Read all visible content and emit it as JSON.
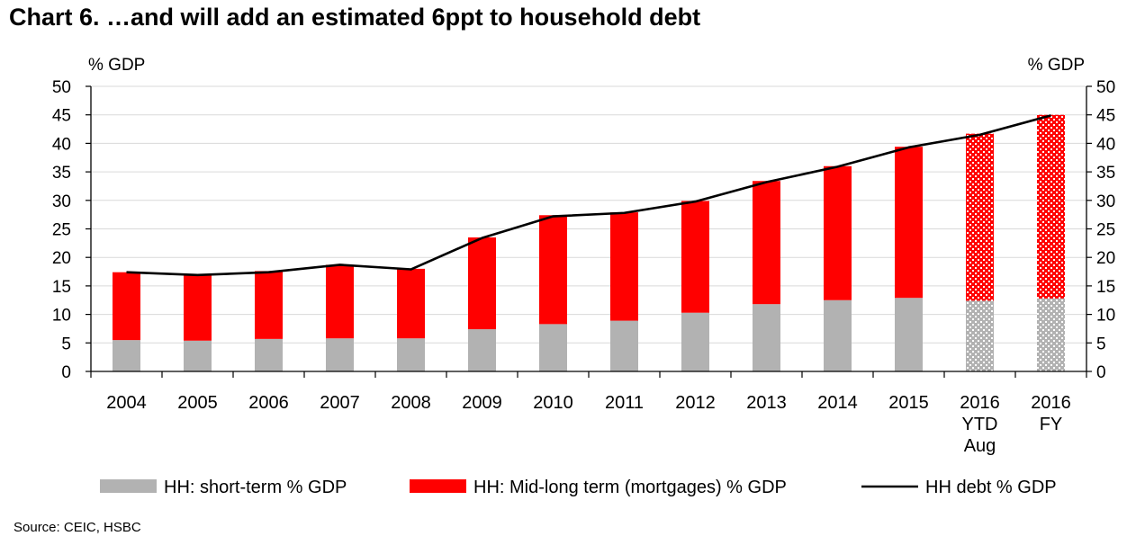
{
  "title": "Chart 6. …and will add an estimated 6ppt to household debt",
  "source": "Source: CEIC, HSBC",
  "chart_data": {
    "type": "bar",
    "stacked": true,
    "categories": [
      [
        "2004"
      ],
      [
        "2005"
      ],
      [
        "2006"
      ],
      [
        "2007"
      ],
      [
        "2008"
      ],
      [
        "2009"
      ],
      [
        "2010"
      ],
      [
        "2011"
      ],
      [
        "2012"
      ],
      [
        "2013"
      ],
      [
        "2014"
      ],
      [
        "2015"
      ],
      [
        "2016",
        "YTD",
        "Aug"
      ],
      [
        "2016",
        "FY"
      ]
    ],
    "left_axis_label": "% GDP",
    "right_axis_label": "% GDP",
    "ylim": [
      0,
      50
    ],
    "yticks": [
      0,
      5,
      10,
      15,
      20,
      25,
      30,
      35,
      40,
      45,
      50
    ],
    "grid": true,
    "legend_position": "bottom",
    "estimated_categories": [
      "2016 YTD Aug",
      "2016 FY"
    ],
    "series": [
      {
        "name": "HH: short-term % GDP",
        "kind": "bar",
        "color": "#b2b2b2",
        "values": [
          5.5,
          5.4,
          5.7,
          5.8,
          5.8,
          7.4,
          8.3,
          8.9,
          10.3,
          11.8,
          12.5,
          12.9,
          12.4,
          12.8
        ]
      },
      {
        "name": "HH: Mid-long term (mortgages) % GDP",
        "kind": "bar",
        "color": "#ff0000",
        "values": [
          11.9,
          11.5,
          11.9,
          12.9,
          12.2,
          16.1,
          19.1,
          19.0,
          19.6,
          21.6,
          23.5,
          26.5,
          29.3,
          32.2
        ]
      },
      {
        "name": "HH debt % GDP",
        "kind": "line",
        "color": "#000000",
        "values": [
          17.4,
          16.9,
          17.4,
          18.7,
          17.9,
          23.4,
          27.2,
          27.8,
          29.8,
          33.2,
          35.9,
          39.3,
          41.5,
          44.9
        ]
      }
    ]
  }
}
